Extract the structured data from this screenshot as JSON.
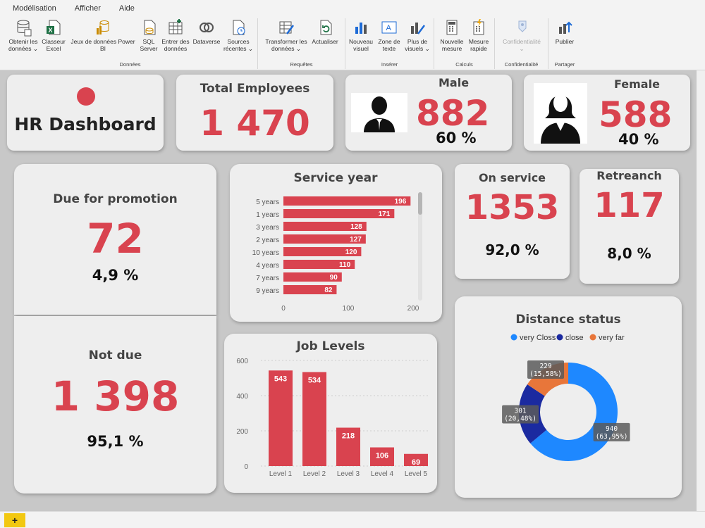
{
  "menu": [
    "Modélisation",
    "Afficher",
    "Aide"
  ],
  "ribbon": {
    "groups": {
      "donnees": "Données",
      "requetes": "Requêtes",
      "inserer": "Insérer",
      "calculs": "Calculs",
      "confidentialite": "Confidentialité",
      "partager": "Partager"
    },
    "buttons": {
      "obtenir": [
        "Obtenir les",
        "données ⌄"
      ],
      "classeur": [
        "Classeur",
        "Excel"
      ],
      "jeux": [
        "Jeux de données Power",
        "BI"
      ],
      "sql": [
        "SQL",
        "Server"
      ],
      "entrer": [
        "Entrer des",
        "données"
      ],
      "dataverse": [
        "Dataverse",
        ""
      ],
      "sources": [
        "Sources",
        "récentes ⌄"
      ],
      "transformer": [
        "Transformer les",
        "données ⌄"
      ],
      "actualiser": [
        "Actualiser",
        ""
      ],
      "nouveau_visuel": [
        "Nouveau",
        "visuel"
      ],
      "zone_texte": [
        "Zone de",
        "texte"
      ],
      "plus_visuels": [
        "Plus de",
        "visuels ⌄"
      ],
      "nouvelle_mesure": [
        "Nouvelle",
        "mesure"
      ],
      "mesure_rapide": [
        "Mesure",
        "rapide"
      ],
      "confidentialite": [
        "Confidentialité",
        "⌄"
      ],
      "publier": [
        "Publier",
        ""
      ]
    }
  },
  "colors": {
    "accent": "#d9434f",
    "very_close": "#1e88ff",
    "close": "#1b2aa0",
    "very_far": "#e8763a"
  },
  "cards": {
    "title": "HR Dashboard",
    "total_employees": {
      "label": "Total Employees",
      "value": "1 470"
    },
    "male": {
      "label": "Male",
      "value": "882",
      "pct": "60 %"
    },
    "female": {
      "label": "Female",
      "value": "588",
      "pct": "40 %"
    },
    "due_promotion": {
      "label": "Due for promotion",
      "value": "72",
      "pct": "4,9 %"
    },
    "not_due": {
      "label": "Not due",
      "value": "1 398",
      "pct": "95,1 %"
    },
    "on_service": {
      "label": "On service",
      "value": "1353",
      "pct": "92,0 %"
    },
    "retrench": {
      "label": "Retreanch",
      "value": "117",
      "pct": "8,0 %"
    }
  },
  "chart_data": [
    {
      "type": "bar",
      "orientation": "horizontal",
      "title": "Service year",
      "categories": [
        "5 years",
        "1 years",
        "3 years",
        "2 years",
        "10 years",
        "4 years",
        "7 years",
        "9 years"
      ],
      "values": [
        196,
        171,
        128,
        127,
        120,
        110,
        90,
        82
      ],
      "xticks": [
        "0",
        "100",
        "200"
      ],
      "xlim": [
        0,
        200
      ]
    },
    {
      "type": "bar",
      "title": "Job Levels",
      "categories": [
        "Level 1",
        "Level 2",
        "Level 3",
        "Level 4",
        "Level 5"
      ],
      "values": [
        543,
        534,
        218,
        106,
        69
      ],
      "yticks": [
        "0",
        "200",
        "400",
        "600"
      ],
      "ylim": [
        0,
        600
      ]
    },
    {
      "type": "pie",
      "donut": true,
      "title": "Distance status",
      "legend": "top",
      "labels": [
        "very Closs",
        "close",
        "very far"
      ],
      "values": [
        940,
        301,
        229
      ],
      "pct_labels": [
        "(63,95%)",
        "(20,48%)",
        "(15,58%)"
      ]
    }
  ]
}
